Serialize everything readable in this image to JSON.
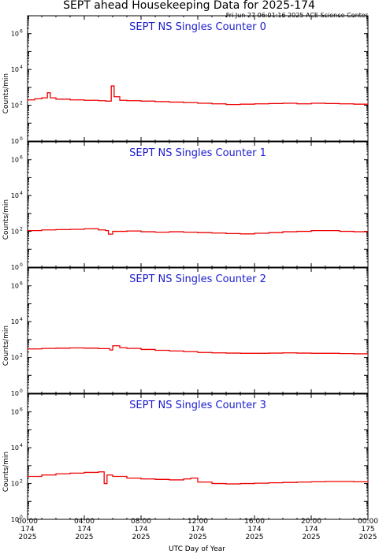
{
  "title": "SEPT ahead Housekeeping Data for 2025-174",
  "stamp": "Fri Jun 27 06:01:16 2025 ACE Science Center",
  "colors": {
    "series": "#ee0000",
    "panel_title": "#1c1ccf",
    "axes": "#000000"
  },
  "chart_data": [
    {
      "type": "line",
      "title": "SEPT NS Singles Counter 0",
      "ylabel": "Counts/min",
      "yscale": "log",
      "ylim": [
        1,
        10000000
      ],
      "yticks": [
        1,
        100,
        10000,
        1000000
      ],
      "ytick_labels": [
        {
          "base": "10",
          "exp": "0"
        },
        {
          "base": "10",
          "exp": "2"
        },
        {
          "base": "10",
          "exp": "4"
        },
        {
          "base": "10",
          "exp": "6"
        }
      ],
      "x_hours": [
        0,
        0.5,
        1,
        1.4,
        1.6,
        2,
        3,
        4,
        5,
        5.5,
        5.75,
        5.9,
        6.1,
        6.5,
        7,
        8,
        9,
        10,
        11,
        12,
        13,
        14,
        15,
        16,
        17,
        18,
        19,
        20,
        21,
        22,
        23,
        24
      ],
      "y": [
        200,
        230,
        260,
        500,
        260,
        220,
        200,
        190,
        180,
        170,
        170,
        1200,
        300,
        190,
        180,
        170,
        160,
        150,
        140,
        130,
        120,
        110,
        115,
        120,
        125,
        130,
        120,
        130,
        125,
        120,
        115,
        120
      ]
    },
    {
      "type": "line",
      "title": "SEPT NS Singles Counter 1",
      "ylabel": "Counts/min",
      "yscale": "log",
      "ylim": [
        1,
        10000000
      ],
      "yticks": [
        1,
        100,
        10000,
        1000000
      ],
      "ytick_labels": [
        {
          "base": "10",
          "exp": "0"
        },
        {
          "base": "10",
          "exp": "2"
        },
        {
          "base": "10",
          "exp": "4"
        },
        {
          "base": "10",
          "exp": "6"
        }
      ],
      "x_hours": [
        0,
        1,
        2,
        3,
        4,
        5,
        5.5,
        5.7,
        6,
        7,
        8,
        9,
        10,
        11,
        12,
        13,
        14,
        15,
        16,
        17,
        18,
        19,
        20,
        21,
        22,
        23,
        24
      ],
      "y": [
        110,
        120,
        125,
        130,
        140,
        120,
        110,
        70,
        100,
        105,
        95,
        90,
        95,
        90,
        85,
        80,
        75,
        72,
        78,
        85,
        95,
        100,
        110,
        110,
        100,
        95,
        100
      ]
    },
    {
      "type": "line",
      "title": "SEPT NS Singles Counter 2",
      "ylabel": "Counts/min",
      "yscale": "log",
      "ylim": [
        1,
        10000000
      ],
      "yticks": [
        1,
        100,
        10000,
        1000000
      ],
      "ytick_labels": [
        {
          "base": "10",
          "exp": "0"
        },
        {
          "base": "10",
          "exp": "2"
        },
        {
          "base": "10",
          "exp": "4"
        },
        {
          "base": "10",
          "exp": "6"
        }
      ],
      "x_hours": [
        0,
        1,
        2,
        3,
        4,
        5,
        5.8,
        6,
        6.5,
        7,
        8,
        9,
        10,
        11,
        12,
        13,
        14,
        15,
        16,
        17,
        18,
        19,
        20,
        21,
        22,
        23,
        24
      ],
      "y": [
        300,
        320,
        330,
        340,
        330,
        310,
        260,
        450,
        350,
        320,
        280,
        250,
        230,
        210,
        190,
        180,
        175,
        170,
        170,
        175,
        180,
        175,
        170,
        170,
        165,
        160,
        165
      ]
    },
    {
      "type": "line",
      "title": "SEPT NS Singles Counter 3",
      "ylabel": "Counts/min",
      "yscale": "log",
      "ylim": [
        1,
        10000000
      ],
      "yticks": [
        1,
        100,
        10000,
        1000000
      ],
      "ytick_labels": [
        {
          "base": "10",
          "exp": "0"
        },
        {
          "base": "10",
          "exp": "2"
        },
        {
          "base": "10",
          "exp": "4"
        },
        {
          "base": "10",
          "exp": "6"
        }
      ],
      "x_hours": [
        0,
        1,
        2,
        3,
        4,
        5,
        5.4,
        5.6,
        6,
        7,
        8,
        9,
        10,
        11,
        11.5,
        12,
        13,
        14,
        15,
        16,
        17,
        18,
        19,
        20,
        21,
        22,
        23,
        24
      ],
      "y": [
        250,
        300,
        350,
        380,
        420,
        450,
        100,
        300,
        250,
        200,
        180,
        170,
        160,
        180,
        200,
        120,
        100,
        95,
        100,
        105,
        110,
        115,
        120,
        125,
        130,
        130,
        125,
        110
      ]
    }
  ],
  "x_axis": {
    "label": "UTC Day of Year",
    "range_hours": [
      0,
      24
    ],
    "ticks": [
      {
        "hour": 0,
        "time": "00:00",
        "day": "174",
        "year": "2025"
      },
      {
        "hour": 4,
        "time": "04:00",
        "day": "174",
        "year": "2025"
      },
      {
        "hour": 8,
        "time": "08:00",
        "day": "174",
        "year": "2025"
      },
      {
        "hour": 12,
        "time": "12:00",
        "day": "174",
        "year": "2025"
      },
      {
        "hour": 16,
        "time": "16:00",
        "day": "174",
        "year": "2025"
      },
      {
        "hour": 20,
        "time": "20:00",
        "day": "174",
        "year": "2025"
      },
      {
        "hour": 24,
        "time": "00:00",
        "day": "175",
        "year": "2025"
      }
    ]
  }
}
